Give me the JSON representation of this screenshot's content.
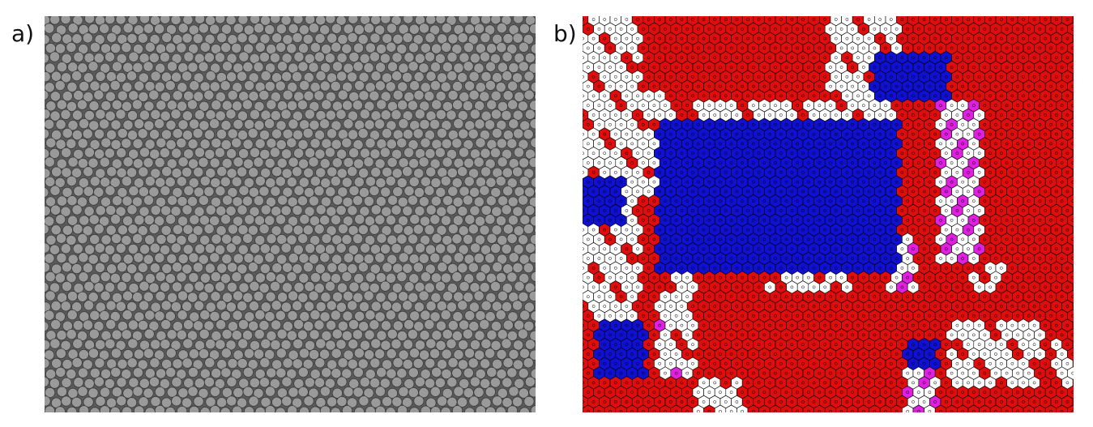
{
  "panels": [
    {
      "label": "a)"
    },
    {
      "label": "b)"
    }
  ],
  "colors": {
    "sem_background": "#5a5a5a",
    "sem_particle": "#9a9a9a",
    "sem_particle_edge": "#3a3a3a",
    "voronoi_hexagonal": "#e00d0d",
    "voronoi_square": "#1010d0",
    "voronoi_defect": "#ffffff",
    "voronoi_pentagon_heptagon": "#e020e0",
    "voronoi_edge": "#000000"
  }
}
